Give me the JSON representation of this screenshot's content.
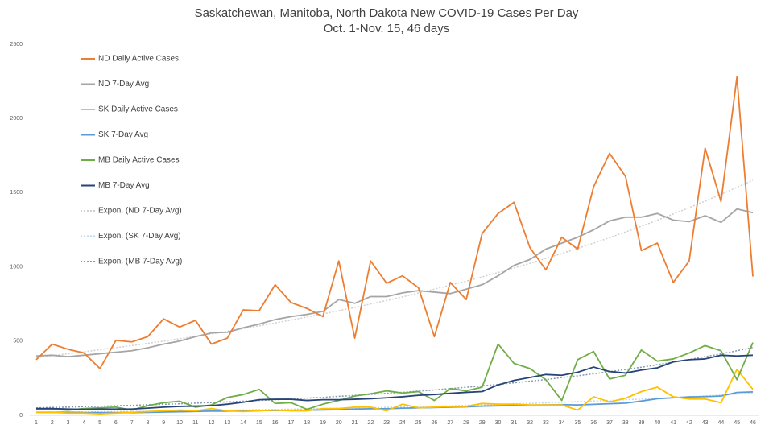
{
  "chart_data": {
    "type": "line",
    "title": "Saskatchewan, Manitoba, North Dakota New COVID-19 Cases Per Day",
    "subtitle": "Oct. 1-Nov. 15, 46 days",
    "categories": [
      1,
      2,
      3,
      4,
      5,
      6,
      7,
      8,
      9,
      10,
      11,
      12,
      13,
      14,
      15,
      16,
      17,
      18,
      19,
      20,
      21,
      22,
      23,
      24,
      25,
      26,
      27,
      28,
      29,
      30,
      31,
      32,
      33,
      34,
      35,
      36,
      37,
      38,
      39,
      40,
      41,
      42,
      43,
      44,
      45,
      46
    ],
    "ylim": [
      0,
      2500
    ],
    "yticks": [
      0,
      500,
      1000,
      1500,
      2000,
      2500
    ],
    "grid": false,
    "legend": "top-left",
    "series": [
      {
        "name": "ND Daily Active Cases",
        "color": "#ed7d31",
        "style": "solid",
        "values": [
          375,
          480,
          445,
          420,
          315,
          505,
          495,
          530,
          650,
          595,
          640,
          480,
          520,
          710,
          705,
          880,
          760,
          720,
          665,
          1040,
          520,
          1040,
          890,
          940,
          860,
          530,
          895,
          780,
          1225,
          1360,
          1435,
          1130,
          980,
          1200,
          1120,
          1540,
          1765,
          1610,
          1110,
          1160,
          895,
          1040,
          1800,
          1440,
          2280,
          935
        ]
      },
      {
        "name": "ND 7-Day Avg",
        "color": "#a5a5a5",
        "style": "solid",
        "values": [
          400,
          405,
          395,
          405,
          415,
          425,
          435,
          455,
          480,
          500,
          530,
          555,
          560,
          590,
          615,
          645,
          665,
          680,
          700,
          780,
          755,
          800,
          800,
          825,
          840,
          830,
          820,
          850,
          880,
          940,
          1010,
          1050,
          1120,
          1160,
          1200,
          1250,
          1310,
          1335,
          1335,
          1360,
          1315,
          1305,
          1345,
          1300,
          1390,
          1365
        ]
      },
      {
        "name": "SK Daily Active Cases",
        "color": "#ffc000",
        "style": "solid",
        "values": [
          20,
          20,
          15,
          15,
          10,
          15,
          20,
          25,
          30,
          35,
          30,
          45,
          30,
          25,
          30,
          35,
          30,
          30,
          45,
          45,
          55,
          55,
          30,
          75,
          50,
          55,
          60,
          60,
          80,
          75,
          75,
          70,
          70,
          70,
          35,
          125,
          90,
          115,
          160,
          190,
          125,
          110,
          110,
          85,
          310,
          175
        ]
      },
      {
        "name": "SK 7-Day Avg",
        "color": "#5b9bd5",
        "style": "solid",
        "values": [
          20,
          20,
          20,
          18,
          18,
          18,
          18,
          20,
          22,
          24,
          26,
          28,
          28,
          30,
          32,
          32,
          34,
          34,
          36,
          38,
          42,
          44,
          44,
          48,
          50,
          52,
          55,
          57,
          62,
          64,
          66,
          68,
          70,
          72,
          70,
          74,
          78,
          82,
          96,
          112,
          118,
          124,
          126,
          130,
          154,
          158
        ]
      },
      {
        "name": "MB Daily Active Cases",
        "color": "#70ad47",
        "style": "solid",
        "values": [
          40,
          40,
          35,
          45,
          50,
          55,
          35,
          65,
          85,
          95,
          55,
          70,
          120,
          140,
          175,
          80,
          85,
          40,
          75,
          100,
          130,
          145,
          165,
          150,
          160,
          100,
          180,
          165,
          190,
          480,
          350,
          315,
          240,
          100,
          375,
          430,
          245,
          270,
          440,
          365,
          380,
          420,
          470,
          435,
          240,
          490
        ]
      },
      {
        "name": "MB 7-Day Avg",
        "color": "#264478",
        "style": "solid",
        "values": [
          45,
          45,
          42,
          40,
          42,
          42,
          42,
          48,
          55,
          60,
          62,
          65,
          75,
          88,
          105,
          108,
          108,
          100,
          105,
          105,
          108,
          112,
          118,
          125,
          135,
          140,
          148,
          155,
          160,
          205,
          235,
          255,
          275,
          270,
          290,
          325,
          295,
          285,
          305,
          320,
          360,
          375,
          380,
          405,
          400,
          405
        ]
      },
      {
        "name": "Expon. (ND 7-Day Avg)",
        "color": "#d0d0d0",
        "style": "dotted",
        "values": [
          390,
          402,
          415,
          428,
          442,
          456,
          470,
          485,
          500,
          516,
          532,
          549,
          567,
          585,
          603,
          622,
          642,
          662,
          683,
          705,
          727,
          750,
          774,
          798,
          824,
          850,
          877,
          904,
          933,
          962,
          993,
          1024,
          1057,
          1090,
          1125,
          1160,
          1197,
          1235,
          1274,
          1314,
          1356,
          1399,
          1443,
          1489,
          1536,
          1584
        ]
      },
      {
        "name": "Expon. (SK 7-Day Avg)",
        "color": "#bdd7ee",
        "style": "dotted",
        "values": [
          20,
          21,
          22,
          23,
          24,
          25,
          26,
          27,
          29,
          30,
          31,
          33,
          34,
          36,
          38,
          39,
          41,
          43,
          45,
          47,
          49,
          51,
          54,
          56,
          59,
          61,
          64,
          67,
          70,
          73,
          77,
          80,
          84,
          88,
          92,
          96,
          100,
          105,
          109,
          114,
          120,
          125,
          131,
          137,
          143,
          150
        ]
      },
      {
        "name": "Expon. (MB 7-Day Avg)",
        "color": "#8497b0",
        "style": "dotted",
        "values": [
          50,
          53,
          55,
          58,
          61,
          64,
          67,
          71,
          74,
          78,
          82,
          86,
          90,
          95,
          100,
          105,
          110,
          116,
          121,
          128,
          134,
          141,
          148,
          155,
          163,
          171,
          180,
          189,
          198,
          208,
          219,
          230,
          241,
          254,
          266,
          280,
          294,
          309,
          324,
          341,
          358,
          376,
          395,
          414,
          435,
          457
        ]
      }
    ]
  }
}
